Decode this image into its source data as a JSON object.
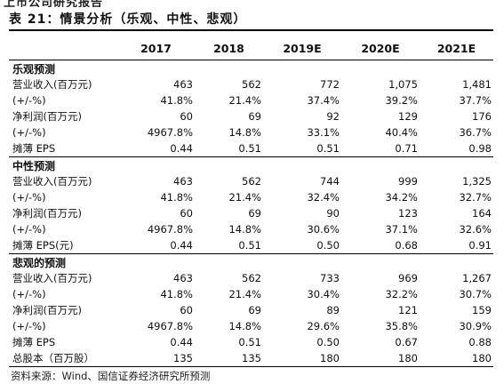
{
  "page_header": "上市公司研究报告",
  "title": "表 21：情景分析（乐观、中性、悲观）",
  "columns": [
    "",
    "2017",
    "2018",
    "2019E",
    "2020E",
    "2021E"
  ],
  "sections": [
    {
      "name": "乐观预测",
      "rows": [
        {
          "label": "营业收入(百万元)",
          "values": [
            "463",
            "562",
            "772",
            "1,075",
            "1,481"
          ]
        },
        {
          "label": "(+/-%)",
          "values": [
            "41.8%",
            "21.4%",
            "37.4%",
            "39.2%",
            "37.7%"
          ]
        },
        {
          "label": "净利润(百万元)",
          "values": [
            "60",
            "69",
            "92",
            "129",
            "176"
          ]
        },
        {
          "label": "(+/-%)",
          "values": [
            "4967.8%",
            "14.8%",
            "33.1%",
            "40.4%",
            "36.7%"
          ]
        },
        {
          "label": "摊薄 EPS",
          "values": [
            "0.44",
            "0.51",
            "0.51",
            "0.71",
            "0.98"
          ]
        }
      ]
    },
    {
      "name": "中性预测",
      "rows": [
        {
          "label": "营业收入(百万元)",
          "values": [
            "463",
            "562",
            "744",
            "999",
            "1,325"
          ]
        },
        {
          "label": "(+/-%)",
          "values": [
            "41.8%",
            "21.4%",
            "32.4%",
            "34.2%",
            "32.7%"
          ]
        },
        {
          "label": "净利润(百万元)",
          "values": [
            "60",
            "69",
            "90",
            "123",
            "164"
          ]
        },
        {
          "label": "(+/-%)",
          "values": [
            "4967.8%",
            "14.8%",
            "30.6%",
            "37.1%",
            "32.6%"
          ]
        },
        {
          "label": "摊薄 EPS(元)",
          "values": [
            "0.44",
            "0.51",
            "0.50",
            "0.68",
            "0.91"
          ]
        }
      ]
    },
    {
      "name": "悲观的预测",
      "rows": [
        {
          "label": "营业收入(百万元)",
          "values": [
            "463",
            "562",
            "733",
            "969",
            "1,267"
          ]
        },
        {
          "label": "(+/-%)",
          "values": [
            "41.8%",
            "21.4%",
            "30.4%",
            "32.2%",
            "30.7%"
          ]
        },
        {
          "label": "净利润(百万元)",
          "values": [
            "60",
            "69",
            "89",
            "121",
            "159"
          ]
        },
        {
          "label": "(+/-%)",
          "values": [
            "4967.8%",
            "14.8%",
            "29.6%",
            "35.8%",
            "30.9%"
          ]
        },
        {
          "label": "摊薄 EPS",
          "values": [
            "0.44",
            "0.51",
            "0.50",
            "0.67",
            "0.88"
          ]
        },
        {
          "label": "总股本（百万股）",
          "values": [
            "135",
            "135",
            "180",
            "180",
            "180"
          ]
        }
      ]
    }
  ],
  "source": "资料来源：Wind、国信证券经济研究所预测"
}
